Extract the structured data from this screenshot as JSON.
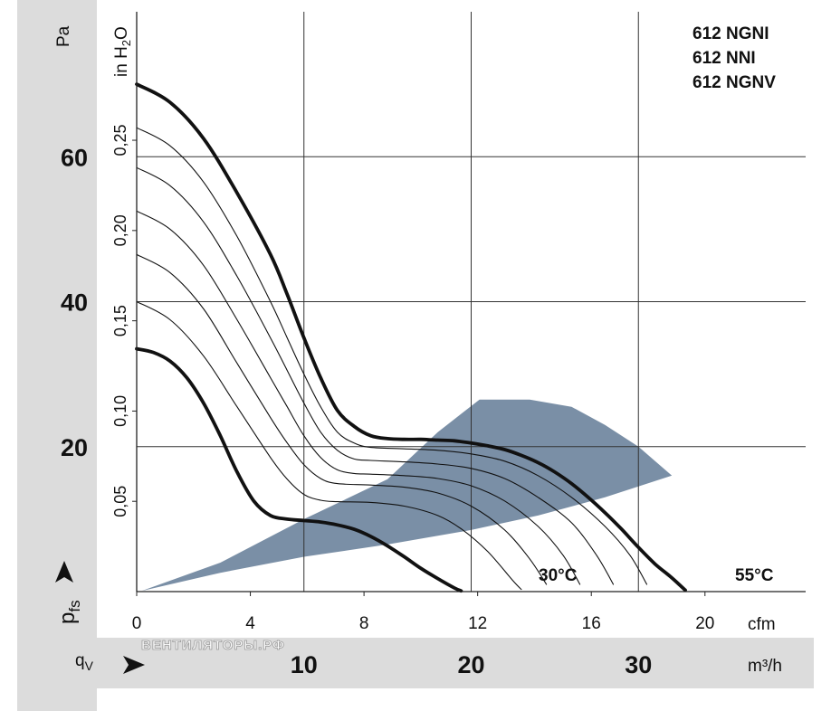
{
  "chart_data": {
    "type": "line",
    "title": "",
    "legend": [
      "612  NGNI",
      "612  NNI",
      "612  NGNV"
    ],
    "legend_position": "top-right",
    "grid": true,
    "y_label_pa": "Pa",
    "y_label_inh2o": "in H",
    "y_label_inh2o_sub": "2",
    "y_label_inh2o_tail": "O",
    "y_symbol": "p",
    "y_symbol_sub": "fs",
    "x_symbol": "q",
    "x_symbol_sub": "V",
    "x_unit_cfm": "cfm",
    "x_unit_m3h": "m³/h",
    "ylim_pa": [
      0,
      80
    ],
    "xlim_m3h": [
      0,
      40
    ],
    "y_ticks_pa": [
      {
        "value": 20,
        "label": "20"
      },
      {
        "value": 40,
        "label": "40"
      },
      {
        "value": 60,
        "label": "60"
      }
    ],
    "y_ticks_inh2o": [
      {
        "value": 0.05,
        "label": "0,05"
      },
      {
        "value": 0.1,
        "label": "0,10"
      },
      {
        "value": 0.15,
        "label": "0,15"
      },
      {
        "value": 0.2,
        "label": "0,20"
      },
      {
        "value": 0.25,
        "label": "0,25"
      }
    ],
    "x_ticks_cfm": [
      {
        "value": 0,
        "label": "0"
      },
      {
        "value": 4,
        "label": "4"
      },
      {
        "value": 8,
        "label": "8"
      },
      {
        "value": 12,
        "label": "12"
      },
      {
        "value": 16,
        "label": "16"
      },
      {
        "value": 20,
        "label": "20"
      }
    ],
    "x_ticks_m3h": [
      {
        "value": 10,
        "label": "10"
      },
      {
        "value": 20,
        "label": "20"
      },
      {
        "value": 30,
        "label": "30"
      }
    ],
    "annotations": [
      {
        "text": "30°C"
      },
      {
        "text": "55°C"
      }
    ],
    "watermark": "ВЕНТИЛЯТОРЫ.РФ",
    "operating_region": {
      "color": "#7a8fa6",
      "upper": [
        [
          0.3,
          0.1
        ],
        [
          5,
          4
        ],
        [
          10,
          10
        ],
        [
          15,
          15.5
        ],
        [
          18,
          22
        ],
        [
          20.5,
          26.5
        ]
      ],
      "top": [
        [
          20.5,
          26.5
        ],
        [
          23.5,
          26.5
        ]
      ],
      "right": [
        [
          23.5,
          26.5
        ],
        [
          26,
          25.5
        ],
        [
          28,
          23
        ],
        [
          30,
          20
        ],
        [
          32,
          16
        ]
      ],
      "lower": [
        [
          32,
          16
        ],
        [
          28,
          13
        ],
        [
          24,
          10.5
        ],
        [
          20,
          8.5
        ],
        [
          15,
          6.5
        ],
        [
          10,
          4.8
        ],
        [
          5,
          2.6
        ],
        [
          0.3,
          0.1
        ]
      ]
    },
    "series": [
      {
        "bold": true,
        "points": [
          [
            0,
            70
          ],
          [
            2,
            67.5
          ],
          [
            4,
            62.5
          ],
          [
            6,
            55
          ],
          [
            8,
            46.5
          ],
          [
            9,
            41
          ],
          [
            10,
            35
          ],
          [
            11,
            29.5
          ],
          [
            12,
            25
          ],
          [
            13,
            22.8
          ],
          [
            14,
            21.5
          ],
          [
            15,
            21.1
          ],
          [
            16,
            21
          ],
          [
            17,
            21
          ],
          [
            18,
            20.9
          ],
          [
            19,
            20.8
          ],
          [
            20,
            20.5
          ],
          [
            21,
            20.1
          ],
          [
            22,
            19.6
          ],
          [
            23,
            18.8
          ],
          [
            24,
            17.8
          ],
          [
            25,
            16.5
          ],
          [
            26,
            14.9
          ],
          [
            27,
            13
          ],
          [
            28,
            10.9
          ],
          [
            29,
            8.6
          ],
          [
            30,
            6.1
          ],
          [
            31,
            3.8
          ],
          [
            32,
            1.9
          ],
          [
            32.8,
            0.2
          ]
        ]
      },
      {
        "bold": false,
        "points": [
          [
            0,
            64
          ],
          [
            2,
            61.5
          ],
          [
            4,
            56.5
          ],
          [
            6,
            49
          ],
          [
            8,
            40
          ],
          [
            9,
            35
          ],
          [
            10,
            30
          ],
          [
            11,
            25.5
          ],
          [
            12,
            22
          ],
          [
            13,
            20.5
          ],
          [
            14,
            19.9
          ],
          [
            16,
            19.7
          ],
          [
            18,
            19.5
          ],
          [
            20,
            19
          ],
          [
            22,
            18
          ],
          [
            24,
            16
          ],
          [
            26,
            13
          ],
          [
            28,
            9
          ],
          [
            29.5,
            5
          ],
          [
            30.5,
            1
          ]
        ]
      },
      {
        "bold": false,
        "points": [
          [
            0,
            58.5
          ],
          [
            2,
            56
          ],
          [
            4,
            51
          ],
          [
            6,
            43.5
          ],
          [
            8,
            35
          ],
          [
            9,
            30.5
          ],
          [
            10,
            26
          ],
          [
            11,
            22
          ],
          [
            12,
            19.5
          ],
          [
            13,
            18.3
          ],
          [
            14,
            18.1
          ],
          [
            16,
            17.9
          ],
          [
            18,
            17.6
          ],
          [
            20,
            17
          ],
          [
            22,
            15.6
          ],
          [
            24,
            13
          ],
          [
            26,
            9.5
          ],
          [
            27.5,
            5
          ],
          [
            28.5,
            1
          ]
        ]
      },
      {
        "bold": false,
        "points": [
          [
            0,
            52.5
          ],
          [
            2,
            50
          ],
          [
            4,
            45
          ],
          [
            6,
            37.5
          ],
          [
            8,
            29.5
          ],
          [
            9,
            25.5
          ],
          [
            10,
            21.5
          ],
          [
            11,
            18.5
          ],
          [
            12,
            16.8
          ],
          [
            13,
            16.3
          ],
          [
            14,
            16.2
          ],
          [
            16,
            16
          ],
          [
            18,
            15.6
          ],
          [
            20,
            14.6
          ],
          [
            22,
            12.5
          ],
          [
            24,
            9
          ],
          [
            25.5,
            5
          ],
          [
            26.5,
            1
          ]
        ]
      },
      {
        "bold": false,
        "points": [
          [
            0,
            46.5
          ],
          [
            2,
            44
          ],
          [
            4,
            39
          ],
          [
            6,
            31.5
          ],
          [
            8,
            24
          ],
          [
            9,
            20.5
          ],
          [
            10,
            17.5
          ],
          [
            11,
            15.6
          ],
          [
            12,
            14.9
          ],
          [
            14,
            14.7
          ],
          [
            16,
            14.4
          ],
          [
            18,
            13.6
          ],
          [
            20,
            11.8
          ],
          [
            22,
            8.5
          ],
          [
            23.5,
            4.5
          ],
          [
            24.5,
            1
          ]
        ]
      },
      {
        "bold": false,
        "points": [
          [
            0,
            40
          ],
          [
            2,
            37.5
          ],
          [
            4,
            32.5
          ],
          [
            6,
            25.5
          ],
          [
            8,
            18.5
          ],
          [
            9,
            15.5
          ],
          [
            10,
            13.4
          ],
          [
            11,
            12.6
          ],
          [
            12,
            12.4
          ],
          [
            14,
            12.3
          ],
          [
            16,
            11.8
          ],
          [
            18,
            10.5
          ],
          [
            19.5,
            8.5
          ],
          [
            21,
            5.5
          ],
          [
            22.5,
            1.5
          ],
          [
            23,
            0.3
          ]
        ]
      },
      {
        "bold": true,
        "points": [
          [
            0,
            33.5
          ],
          [
            1,
            33
          ],
          [
            2,
            31.8
          ],
          [
            3,
            29.5
          ],
          [
            4,
            26
          ],
          [
            5,
            21.5
          ],
          [
            6,
            16.5
          ],
          [
            7,
            12.5
          ],
          [
            8,
            10.5
          ],
          [
            9,
            10
          ],
          [
            10,
            9.8
          ],
          [
            11,
            9.6
          ],
          [
            12,
            9.2
          ],
          [
            13,
            8.6
          ],
          [
            14,
            7.6
          ],
          [
            15,
            6.3
          ],
          [
            16,
            4.8
          ],
          [
            17,
            3.2
          ],
          [
            18,
            1.8
          ],
          [
            19,
            0.5
          ],
          [
            19.4,
            0.1
          ]
        ]
      }
    ]
  }
}
